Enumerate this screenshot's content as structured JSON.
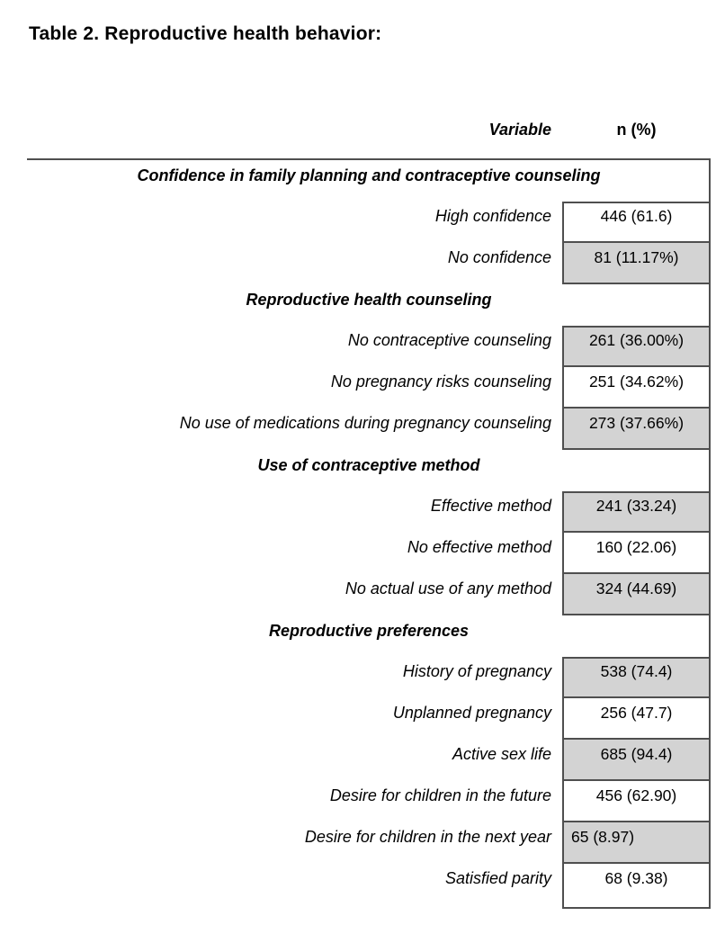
{
  "page": {
    "title": "Table 2. Reproductive health behavior:"
  },
  "table": {
    "columns": {
      "variable": "Variable",
      "n_pct": "n (%)"
    },
    "sections": [
      {
        "header": "Confidence in family planning and contraceptive counseling",
        "rows": [
          {
            "label": "High confidence",
            "value": "446 (61.6)",
            "shaded": false
          },
          {
            "label": "No confidence",
            "value": "81 (11.17%)",
            "shaded": true
          }
        ]
      },
      {
        "header": "Reproductive health counseling",
        "rows": [
          {
            "label": "No contraceptive counseling",
            "value": "261 (36.00%)",
            "shaded": true
          },
          {
            "label": "No pregnancy risks counseling",
            "value": "251 (34.62%)",
            "shaded": false
          },
          {
            "label": "No use of medications during pregnancy counseling",
            "value": "273 (37.66%)",
            "shaded": true
          }
        ]
      },
      {
        "header": "Use of contraceptive method",
        "rows": [
          {
            "label": "Effective method",
            "value": "241 (33.24)",
            "shaded": true
          },
          {
            "label": "No effective method",
            "value": "160 (22.06)",
            "shaded": false
          },
          {
            "label": "No actual use of any method",
            "value": "324 (44.69)",
            "shaded": true
          }
        ]
      },
      {
        "header": "Reproductive preferences",
        "rows": [
          {
            "label": "History of pregnancy",
            "value": "538 (74.4)",
            "shaded": true
          },
          {
            "label": "Unplanned pregnancy",
            "value": "256 (47.7)",
            "shaded": false
          },
          {
            "label": "Active sex life",
            "value": "685 (94.4)",
            "shaded": true
          },
          {
            "label": "Desire for children in the future",
            "value": "456 (62.90)",
            "shaded": false
          },
          {
            "label": "Desire for children in the next year",
            "value": "65 (8.97)",
            "shaded": true
          },
          {
            "label": "Satisfied parity",
            "value": "68 (9.38)",
            "shaded": false
          }
        ]
      }
    ]
  },
  "colors": {
    "shaded_cell": "#d3d3d3",
    "border": "#4f4f4f",
    "text": "#000000"
  }
}
